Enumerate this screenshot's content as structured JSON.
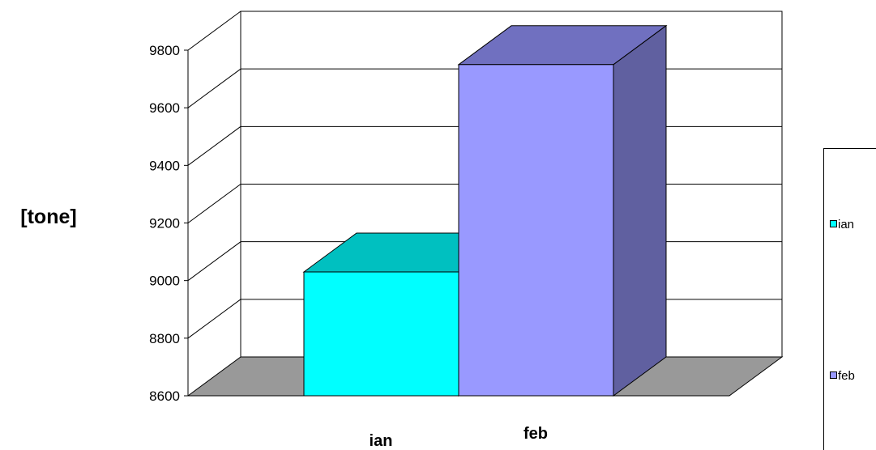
{
  "chart_data": {
    "type": "bar",
    "style": "3d-clustered-column",
    "categories": [
      "ian",
      "feb"
    ],
    "series": [
      {
        "name": "ian",
        "category": "ian",
        "value": 9030,
        "color": "#00ffff",
        "top_color": "#00c0c0",
        "side_color": "#00a0a0"
      },
      {
        "name": "feb",
        "category": "feb",
        "value": 9750,
        "color": "#9999ff",
        "top_color": "#7070c0",
        "side_color": "#6060a0"
      }
    ],
    "title": "",
    "xlabel": "",
    "ylabel": "[tone]",
    "ylim": [
      8600,
      9800
    ],
    "yticks": [
      8600,
      8800,
      9000,
      9200,
      9400,
      9600,
      9800
    ],
    "grid": true,
    "floor_color": "#999999",
    "legend": {
      "placement": "right",
      "entries": [
        "ian",
        "feb"
      ]
    }
  }
}
